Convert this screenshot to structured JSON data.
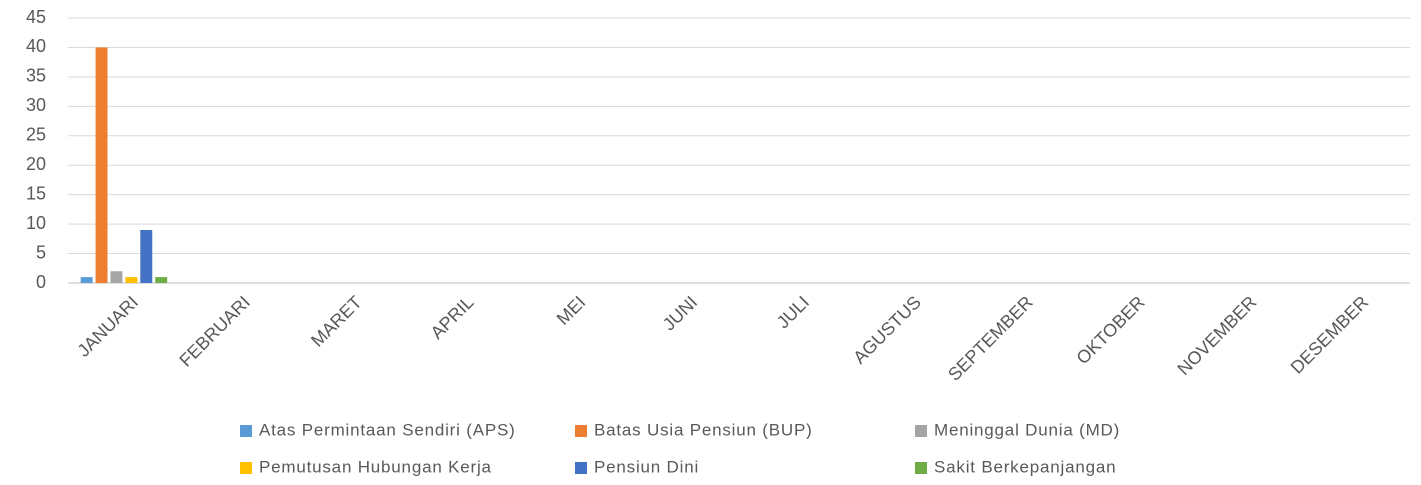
{
  "chart_data": {
    "type": "bar",
    "categories": [
      "JANUARI",
      "FEBRUARI",
      "MARET",
      "APRIL",
      "MEI",
      "JUNI",
      "JULI",
      "AGUSTUS",
      "SEPTEMBER",
      "OKTOBER",
      "NOVEMBER",
      "DESEMBER"
    ],
    "series": [
      {
        "name": "Atas Permintaan Sendiri (APS)",
        "color": "#5b9bd5",
        "values": [
          1,
          0,
          0,
          0,
          0,
          0,
          0,
          0,
          0,
          0,
          0,
          0
        ]
      },
      {
        "name": "Batas Usia Pensiun (BUP)",
        "color": "#ed7d31",
        "values": [
          40,
          0,
          0,
          0,
          0,
          0,
          0,
          0,
          0,
          0,
          0,
          0
        ]
      },
      {
        "name": "Meninggal Dunia (MD)",
        "color": "#a5a5a5",
        "values": [
          2,
          0,
          0,
          0,
          0,
          0,
          0,
          0,
          0,
          0,
          0,
          0
        ]
      },
      {
        "name": "Pemutusan Hubungan Kerja",
        "color": "#ffc000",
        "values": [
          1,
          0,
          0,
          0,
          0,
          0,
          0,
          0,
          0,
          0,
          0,
          0
        ]
      },
      {
        "name": "Pensiun Dini",
        "color": "#4472c4",
        "values": [
          9,
          0,
          0,
          0,
          0,
          0,
          0,
          0,
          0,
          0,
          0,
          0
        ]
      },
      {
        "name": "Sakit Berkepanjangan",
        "color": "#70ad47",
        "values": [
          1,
          0,
          0,
          0,
          0,
          0,
          0,
          0,
          0,
          0,
          0,
          0
        ]
      }
    ],
    "ylim": [
      0,
      45
    ],
    "yticks": [
      0,
      5,
      10,
      15,
      20,
      25,
      30,
      35,
      40,
      45
    ],
    "grid": true,
    "legend": "bottom"
  }
}
